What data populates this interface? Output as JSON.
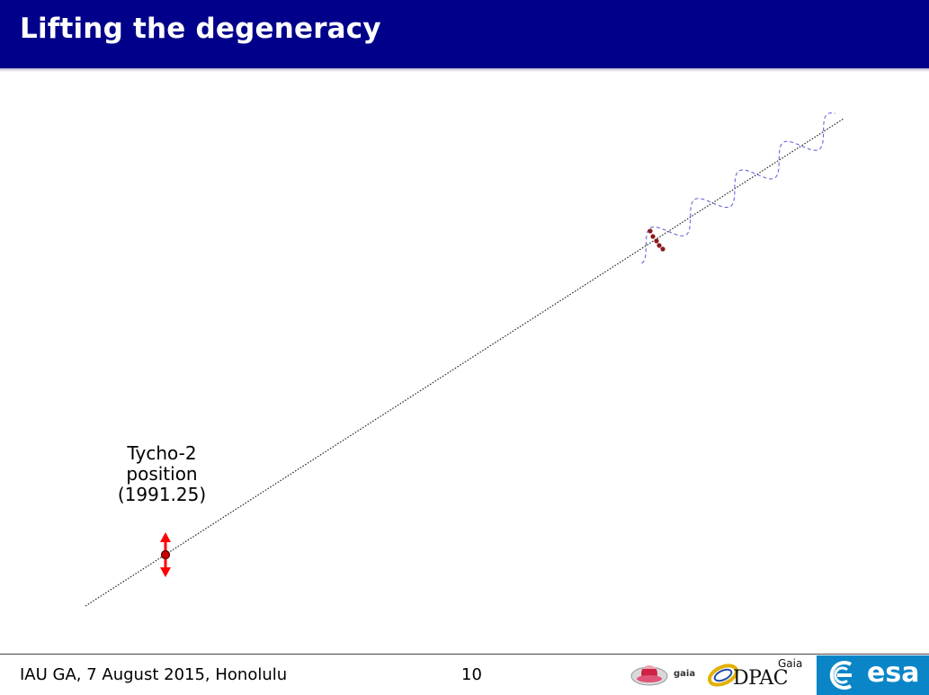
{
  "slide": {
    "title": "Lifting the degeneracy"
  },
  "diagram": {
    "point_label": [
      "Tycho-2",
      "position",
      "(1991.25)"
    ],
    "colors": {
      "trajectory": "#222222",
      "marker": "#ff0000",
      "observations": "#8b1a1a",
      "wave": "#6666dd"
    }
  },
  "footer": {
    "event": "IAU GA, 7 August 2015, Honolulu",
    "page_number": "10",
    "logos": {
      "gaia": "gaia",
      "dpac": "DPAC",
      "dpac_superscript": "Gaia",
      "esa": "esa"
    }
  },
  "colors": {
    "title_bar": "#00008b",
    "title_text": "#ffffff",
    "esa_blue": "#0a86c8"
  }
}
